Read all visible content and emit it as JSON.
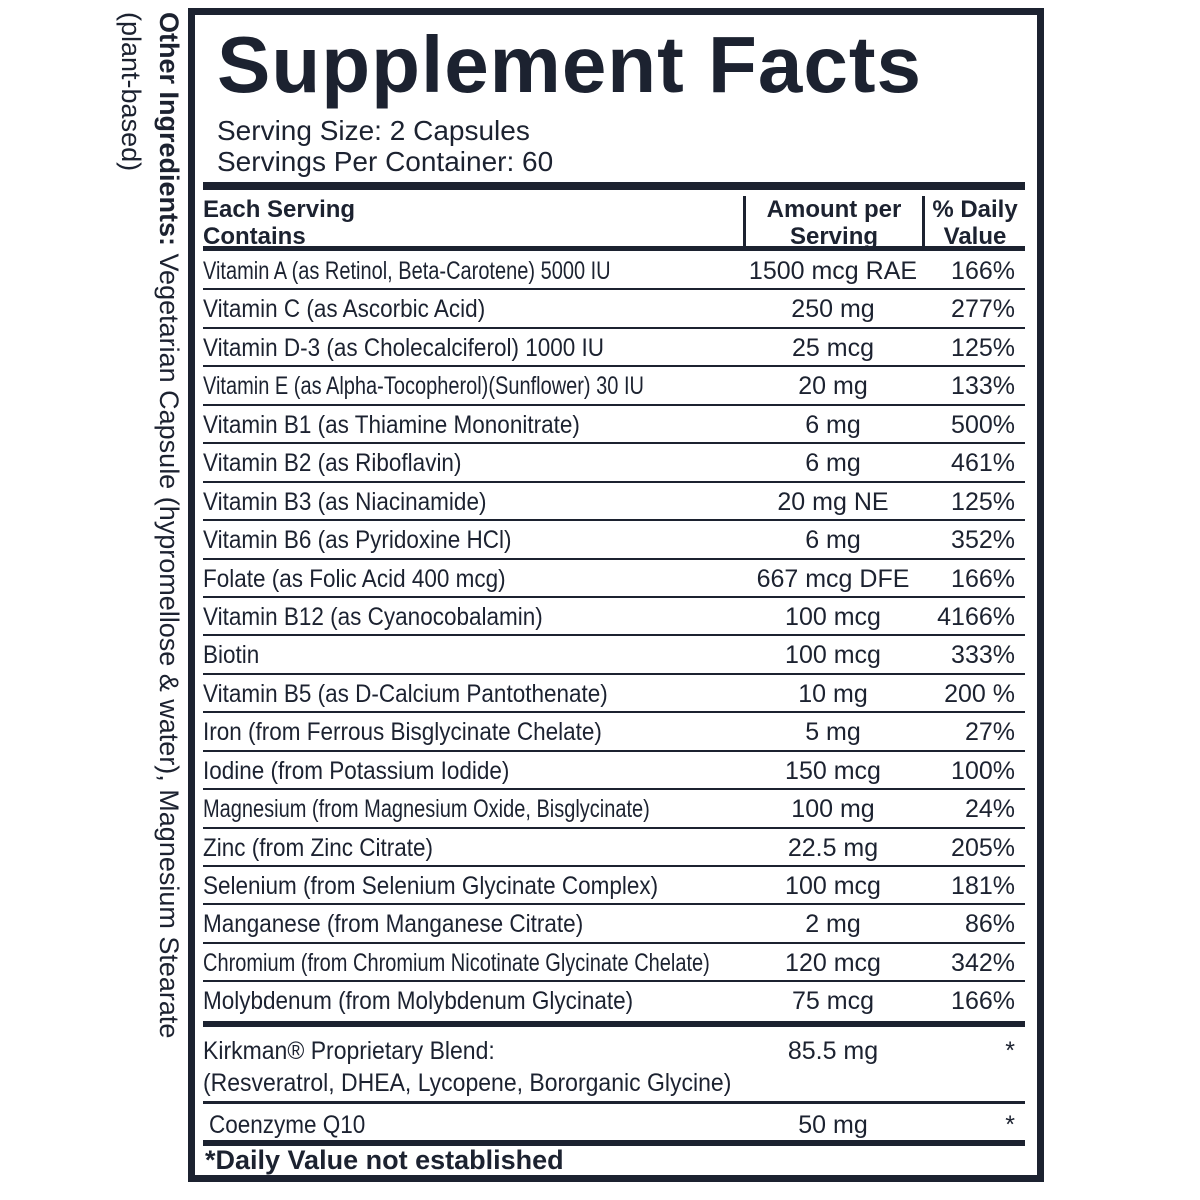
{
  "other_ingredients": {
    "label": "Other Ingredients:",
    "text": " Vegetarian Capsule (hypromellose & water), Magnesium Stearate",
    "line2": "(plant-based)"
  },
  "title": "Supplement Facts",
  "serving_size": "Serving Size: 2 Capsules",
  "servings_per_container": "Servings Per Container: 60",
  "header": {
    "col1_line1": "Each Serving",
    "col1_line2": "Contains",
    "col2_line1": "Amount per",
    "col2_line2": "Serving",
    "col3_line1": "% Daily",
    "col3_line2": "Value"
  },
  "rows": [
    {
      "name": "Vitamin A (as Retinol, Beta-Carotene) 5000 IU",
      "amount": "1500 mcg RAE",
      "dv": "166%"
    },
    {
      "name": "Vitamin C (as Ascorbic Acid)",
      "amount": "250 mg",
      "dv": "277%"
    },
    {
      "name": "Vitamin D-3 (as Cholecalciferol) 1000 IU",
      "amount": "25 mcg",
      "dv": "125%"
    },
    {
      "name": "Vitamin E (as Alpha-Tocopherol)(Sunflower) 30 IU",
      "amount": "20 mg",
      "dv": "133%"
    },
    {
      "name": "Vitamin B1 (as Thiamine Mononitrate)",
      "amount": "6 mg",
      "dv": "500%"
    },
    {
      "name": "Vitamin B2 (as Riboflavin)",
      "amount": "6 mg",
      "dv": "461%"
    },
    {
      "name": "Vitamin B3 (as Niacinamide)",
      "amount": "20 mg NE",
      "dv": "125%"
    },
    {
      "name": "Vitamin B6 (as Pyridoxine HCl)",
      "amount": "6 mg",
      "dv": "352%"
    },
    {
      "name": "Folate (as Folic Acid 400 mcg)",
      "amount": "667 mcg DFE",
      "dv": "166%"
    },
    {
      "name": "Vitamin B12 (as Cyanocobalamin)",
      "amount": "100 mcg",
      "dv": "4166%"
    },
    {
      "name": "Biotin",
      "amount": "100 mcg",
      "dv": "333%"
    },
    {
      "name": "Vitamin B5 (as D-Calcium Pantothenate)",
      "amount": "10 mg",
      "dv": "200 %"
    },
    {
      "name": "Iron (from Ferrous Bisglycinate Chelate)",
      "amount": "5 mg",
      "dv": "27%"
    },
    {
      "name": "Iodine (from Potassium Iodide)",
      "amount": "150 mcg",
      "dv": "100%"
    },
    {
      "name": "Magnesium (from Magnesium Oxide, Bisglycinate)",
      "amount": "100 mg",
      "dv": "24%"
    },
    {
      "name": "Zinc (from Zinc Citrate)",
      "amount": "22.5 mg",
      "dv": "205%"
    },
    {
      "name": "Selenium (from Selenium Glycinate Complex)",
      "amount": "100 mcg",
      "dv": "181%"
    },
    {
      "name": "Manganese (from Manganese Citrate)",
      "amount": "2 mg",
      "dv": "86%"
    },
    {
      "name": "Chromium (from Chromium Nicotinate Glycinate Chelate)",
      "amount": "120 mcg",
      "dv": "342%"
    },
    {
      "name": "Molybdenum (from Molybdenum Glycinate)",
      "amount": "75 mcg",
      "dv": "166%"
    }
  ],
  "blend": {
    "name": "Kirkman® Proprietary Blend:",
    "amount": "85.5 mg",
    "dv": "*",
    "contents": "(Resveratrol, DHEA, Lycopene, Bororganic Glycine)"
  },
  "coq10": {
    "name": "Coenzyme Q10",
    "amount": "50 mg",
    "dv": "*"
  },
  "footnote": "*Daily Value not established"
}
